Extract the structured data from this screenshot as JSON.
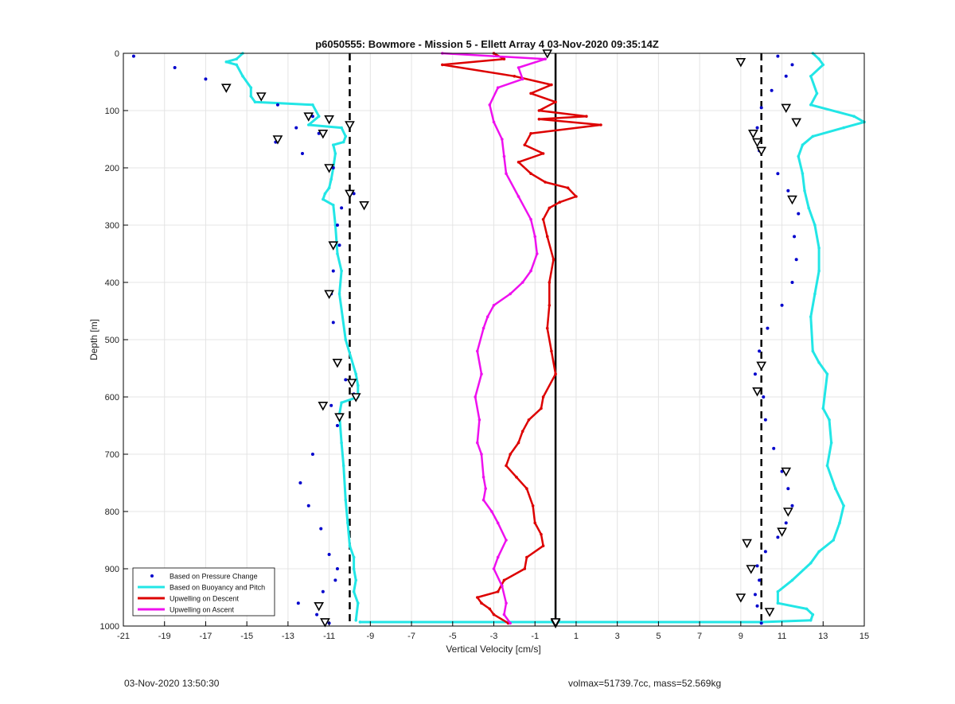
{
  "footer": {
    "left": "03-Nov-2020 13:50:30",
    "right": "volmax=51739.7cc, mass=52.569kg"
  },
  "colors": {
    "pressure": "#0000cc",
    "buoyancy": "#22e6e6",
    "descent": "#dd0000",
    "ascent": "#ee11ee",
    "grid": "#e4e4e4"
  },
  "chart_data": {
    "type": "line",
    "title": "p6050555: Bowmore - Mission 5 - Ellett Array 4 03-Nov-2020 09:35:14Z",
    "xlabel": "Vertical Velocity [cm/s]",
    "ylabel": "Depth [m]",
    "xlim": [
      -21,
      15
    ],
    "ylim": [
      0,
      1000
    ],
    "y_reversed": true,
    "grid": true,
    "legend_position": "bottom-left",
    "xticks": [
      -21,
      -19,
      -17,
      -15,
      -13,
      -11,
      -9,
      -7,
      -5,
      -3,
      -1,
      1,
      3,
      5,
      7,
      9,
      11,
      13,
      15
    ],
    "yticks": [
      0,
      100,
      200,
      300,
      400,
      500,
      600,
      700,
      800,
      900,
      1000
    ],
    "reference_lines": [
      {
        "x": -10,
        "style": "dashed"
      },
      {
        "x": 10,
        "style": "dashed"
      },
      {
        "x": 0,
        "style": "solid"
      }
    ],
    "series": [
      {
        "name": "Based on Pressure Change",
        "style": "dots",
        "segments": [
          {
            "x": [
              -20.5,
              -18.5,
              -17.0,
              -16.0,
              -14.3,
              -13.5,
              -11.8,
              -12.6,
              -11.5,
              -13.6,
              -12.3,
              -10.8,
              -9.8,
              -10.4,
              -10.6,
              -10.5,
              -10.8,
              -10.9,
              -10.8,
              -10.6,
              -10.2,
              -9.8,
              -10.9,
              -10.6,
              -11.8,
              -12.4,
              -12.0,
              -11.4,
              -11.0,
              -10.6,
              -10.7,
              -11.3,
              -12.5,
              -11.6,
              -11.0
            ],
            "y": [
              5,
              25,
              45,
              60,
              75,
              90,
              110,
              130,
              140,
              155,
              175,
              200,
              245,
              270,
              300,
              335,
              380,
              420,
              470,
              540,
              570,
              595,
              615,
              650,
              700,
              750,
              790,
              830,
              875,
              900,
              920,
              940,
              960,
              980,
              995
            ]
          },
          {
            "x": [
              10.8,
              11.5,
              11.2,
              10.5,
              10.0,
              9.8,
              9.9,
              10.8,
              11.3,
              11.8,
              11.6,
              11.7,
              11.5,
              11.0,
              10.3,
              9.9,
              9.7,
              10.1,
              10.2,
              10.6,
              11.0,
              11.3,
              11.5,
              11.2,
              10.8,
              10.2,
              9.8,
              9.9,
              9.7,
              9.8,
              10.0
            ],
            "y": [
              5,
              20,
              40,
              65,
              95,
              130,
              170,
              210,
              240,
              280,
              320,
              360,
              400,
              440,
              480,
              520,
              560,
              600,
              640,
              690,
              730,
              760,
              790,
              820,
              845,
              870,
              895,
              920,
              945,
              965,
              995
            ]
          }
        ]
      },
      {
        "name": "Based on Buoyancy and Pitch",
        "style": "line",
        "segments": [
          {
            "x": [
              -15.2,
              -15.5,
              -16.0,
              -15.5,
              -15.2,
              -14.8,
              -14.8,
              -14.6,
              -11.8,
              -11.5,
              -12.0,
              -10.4,
              -10.2,
              -10.3,
              -10.8,
              -10.7,
              -10.8,
              -10.9,
              -11.0,
              -11.2,
              -11.3,
              -10.8,
              -10.7,
              -10.6,
              -10.4,
              -10.5,
              -10.2,
              -9.7,
              -9.6,
              -9.6,
              -10.4,
              -10.5,
              -10.4,
              -10.3,
              -10.2,
              -10.1,
              -10.0,
              -9.8,
              -9.8,
              -9.7,
              -9.8,
              -9.6,
              -9.7
            ],
            "y": [
              0,
              10,
              15,
              20,
              40,
              60,
              75,
              85,
              90,
              110,
              125,
              130,
              145,
              155,
              160,
              175,
              200,
              220,
              235,
              245,
              255,
              265,
              300,
              350,
              380,
              420,
              500,
              560,
              580,
              600,
              610,
              630,
              680,
              720,
              780,
              820,
              860,
              880,
              900,
              920,
              940,
              960,
              990
            ]
          },
          {
            "x": [
              -9.5,
              10.0
            ],
            "y": [
              993,
              993
            ]
          },
          {
            "x": [
              12.5,
              12.8,
              13.0,
              12.4,
              12.7,
              12.4,
              14.5,
              15.0,
              14.0,
              12.5,
              12.0,
              11.8,
              12.0,
              12.1,
              12.3,
              12.6,
              12.8,
              12.8,
              12.6,
              12.4,
              12.5,
              12.8,
              13.2,
              13.0,
              13.3,
              13.4,
              13.2,
              13.6,
              14.0,
              13.8,
              13.5,
              12.8,
              12.4,
              11.5,
              10.8,
              10.8,
              12.2,
              12.5,
              12.4,
              10.0
            ],
            "y": [
              0,
              10,
              20,
              40,
              70,
              90,
              110,
              120,
              130,
              145,
              160,
              180,
              210,
              240,
              270,
              300,
              340,
              380,
              420,
              460,
              520,
              540,
              560,
              620,
              640,
              680,
              720,
              760,
              790,
              820,
              850,
              870,
              890,
              920,
              940,
              960,
              970,
              980,
              990,
              993
            ]
          }
        ]
      },
      {
        "name": "Upwelling on Descent",
        "style": "line",
        "segments": [
          {
            "x": [
              -3.0,
              -2.5,
              -5.5,
              -2.0,
              -0.2,
              -1.2,
              0.0,
              -0.8,
              1.5,
              -0.8,
              2.2,
              -1.2,
              -1.5,
              -0.6,
              -1.8,
              -1.2,
              -0.5,
              0.6,
              1.0,
              0.2,
              -0.3,
              -0.6,
              -0.4,
              -0.1,
              -0.3,
              -0.3,
              -0.4,
              -0.2,
              0.0,
              -0.6,
              -0.7,
              -1.3,
              -1.6,
              -1.8,
              -2.2,
              -2.4,
              -1.9,
              -1.4,
              -1.1,
              -1.0,
              -0.7,
              -0.6,
              -1.4,
              -1.5,
              -2.5,
              -2.8,
              -3.8,
              -3.6,
              -3.2,
              -3.0,
              -2.3
            ],
            "y": [
              0,
              10,
              20,
              40,
              55,
              70,
              85,
              100,
              110,
              115,
              125,
              140,
              160,
              175,
              190,
              210,
              225,
              235,
              250,
              260,
              270,
              290,
              320,
              360,
              400,
              440,
              480,
              520,
              560,
              600,
              620,
              640,
              660,
              680,
              700,
              720,
              740,
              760,
              790,
              820,
              840,
              860,
              880,
              900,
              920,
              940,
              950,
              960,
              970,
              980,
              995
            ]
          }
        ]
      },
      {
        "name": "Upwelling on Ascent",
        "style": "line",
        "segments": [
          {
            "x": [
              -5.5,
              -0.5,
              -1.8,
              -1.6,
              -2.8,
              -3.2,
              -3.0,
              -2.6,
              -2.5,
              -2.4,
              -1.8,
              -1.2,
              -1.0,
              -0.9,
              -1.2,
              -1.6,
              -2.2,
              -3.0,
              -3.3,
              -3.5,
              -3.8,
              -3.6,
              -3.9,
              -3.7,
              -3.8,
              -3.6,
              -3.5,
              -3.4,
              -3.5,
              -3.1,
              -2.8,
              -2.4,
              -2.8,
              -3.0,
              -2.6,
              -2.4,
              -2.5,
              -2.2
            ],
            "y": [
              0,
              10,
              25,
              45,
              60,
              90,
              120,
              150,
              180,
              210,
              250,
              290,
              320,
              350,
              380,
              400,
              420,
              440,
              460,
              480,
              520,
              560,
              600,
              640,
              680,
              700,
              740,
              760,
              780,
              800,
              820,
              850,
              880,
              900,
              930,
              960,
              980,
              995
            ]
          }
        ]
      }
    ],
    "markers": {
      "style": "triangles",
      "x": [
        -16.0,
        -14.3,
        -12.0,
        -11.0,
        -10.0,
        -11.3,
        -13.5,
        -11.0,
        -10.0,
        -9.3,
        -10.8,
        -11.0,
        -10.6,
        -9.9,
        -9.7,
        -11.3,
        -10.5,
        -11.5,
        -11.2,
        -0.4,
        0.0,
        9.0,
        11.2,
        11.7,
        9.6,
        9.8,
        10.0,
        11.5,
        10.0,
        9.8,
        11.2,
        11.3,
        11.0,
        9.3,
        9.5,
        9.0,
        10.4,
        0.0
      ],
      "y": [
        60,
        75,
        110,
        115,
        125,
        140,
        150,
        200,
        245,
        265,
        335,
        420,
        540,
        575,
        600,
        615,
        635,
        965,
        993,
        0,
        995,
        15,
        95,
        120,
        140,
        155,
        170,
        255,
        545,
        590,
        730,
        800,
        835,
        855,
        900,
        950,
        975,
        993
      ]
    }
  }
}
